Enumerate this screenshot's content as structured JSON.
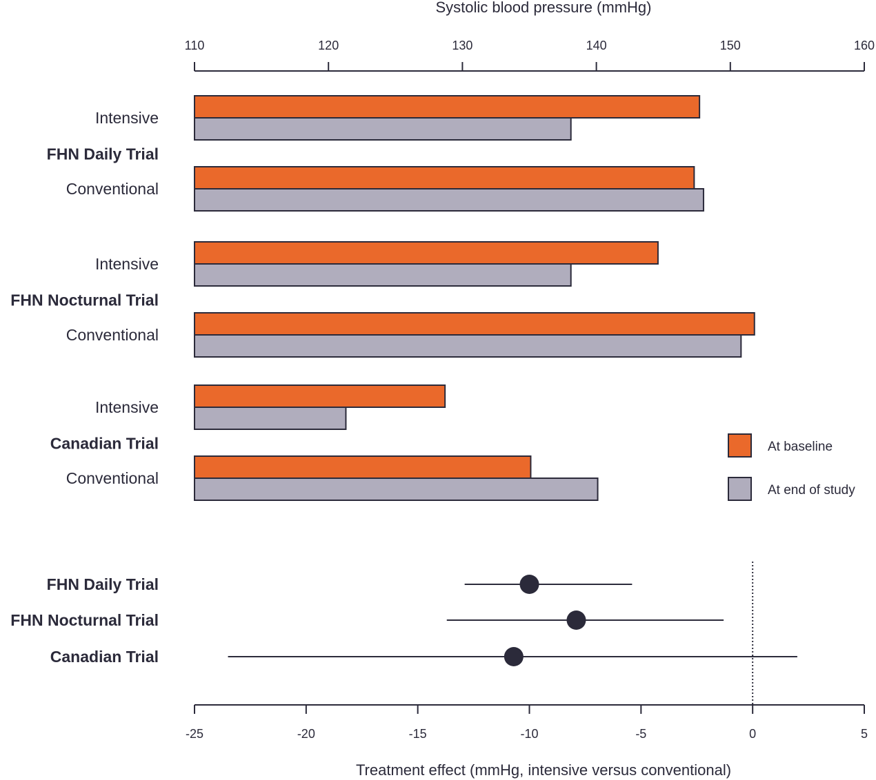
{
  "colors": {
    "baseline": "#ea692b",
    "end_of_study": "#b0adbd",
    "ink": "#2b2a3a",
    "point": "#2b2a3a"
  },
  "chart_data": [
    {
      "type": "bar",
      "orientation": "horizontal",
      "xlabel": "Systolic blood pressure (mmHg)",
      "xlim": [
        110,
        160
      ],
      "x_ticks": [
        110,
        120,
        130,
        140,
        150,
        160
      ],
      "x_axis_position": "top",
      "grid": false,
      "legend": {
        "placement": "right",
        "items": [
          {
            "label": "At baseline",
            "color_key": "baseline"
          },
          {
            "label": "At end of study",
            "color_key": "end_of_study"
          }
        ]
      },
      "groups": [
        {
          "trial": "FHN Daily Trial",
          "arms": [
            {
              "arm": "Intensive",
              "baseline": 147.7,
              "end_of_study": 138.1
            },
            {
              "arm": "Conventional",
              "baseline": 147.3,
              "end_of_study": 148.0
            }
          ]
        },
        {
          "trial": "FHN Nocturnal Trial",
          "arms": [
            {
              "arm": "Intensive",
              "baseline": 144.6,
              "end_of_study": 138.1
            },
            {
              "arm": "Conventional",
              "baseline": 151.8,
              "end_of_study": 150.8
            }
          ]
        },
        {
          "trial": "Canadian Trial",
          "arms": [
            {
              "arm": "Intensive",
              "baseline": 128.7,
              "end_of_study": 121.3
            },
            {
              "arm": "Conventional",
              "baseline": 135.1,
              "end_of_study": 140.1
            }
          ]
        }
      ]
    },
    {
      "type": "scatter",
      "subtype": "forest",
      "xlabel": "Treatment effect (mmHg, intensive versus conventional)",
      "xlim": [
        -25,
        5
      ],
      "x_ticks": [
        -25,
        -20,
        -15,
        -10,
        -5,
        0,
        5
      ],
      "reference_line": 0,
      "grid": false,
      "points": [
        {
          "trial": "FHN Daily Trial",
          "estimate": -10.0,
          "ci_low": -12.9,
          "ci_high": -5.4
        },
        {
          "trial": "FHN Nocturnal Trial",
          "estimate": -7.9,
          "ci_low": -13.7,
          "ci_high": -1.3
        },
        {
          "trial": "Canadian Trial",
          "estimate": -10.7,
          "ci_low": -23.5,
          "ci_high": 2.0
        }
      ]
    }
  ]
}
